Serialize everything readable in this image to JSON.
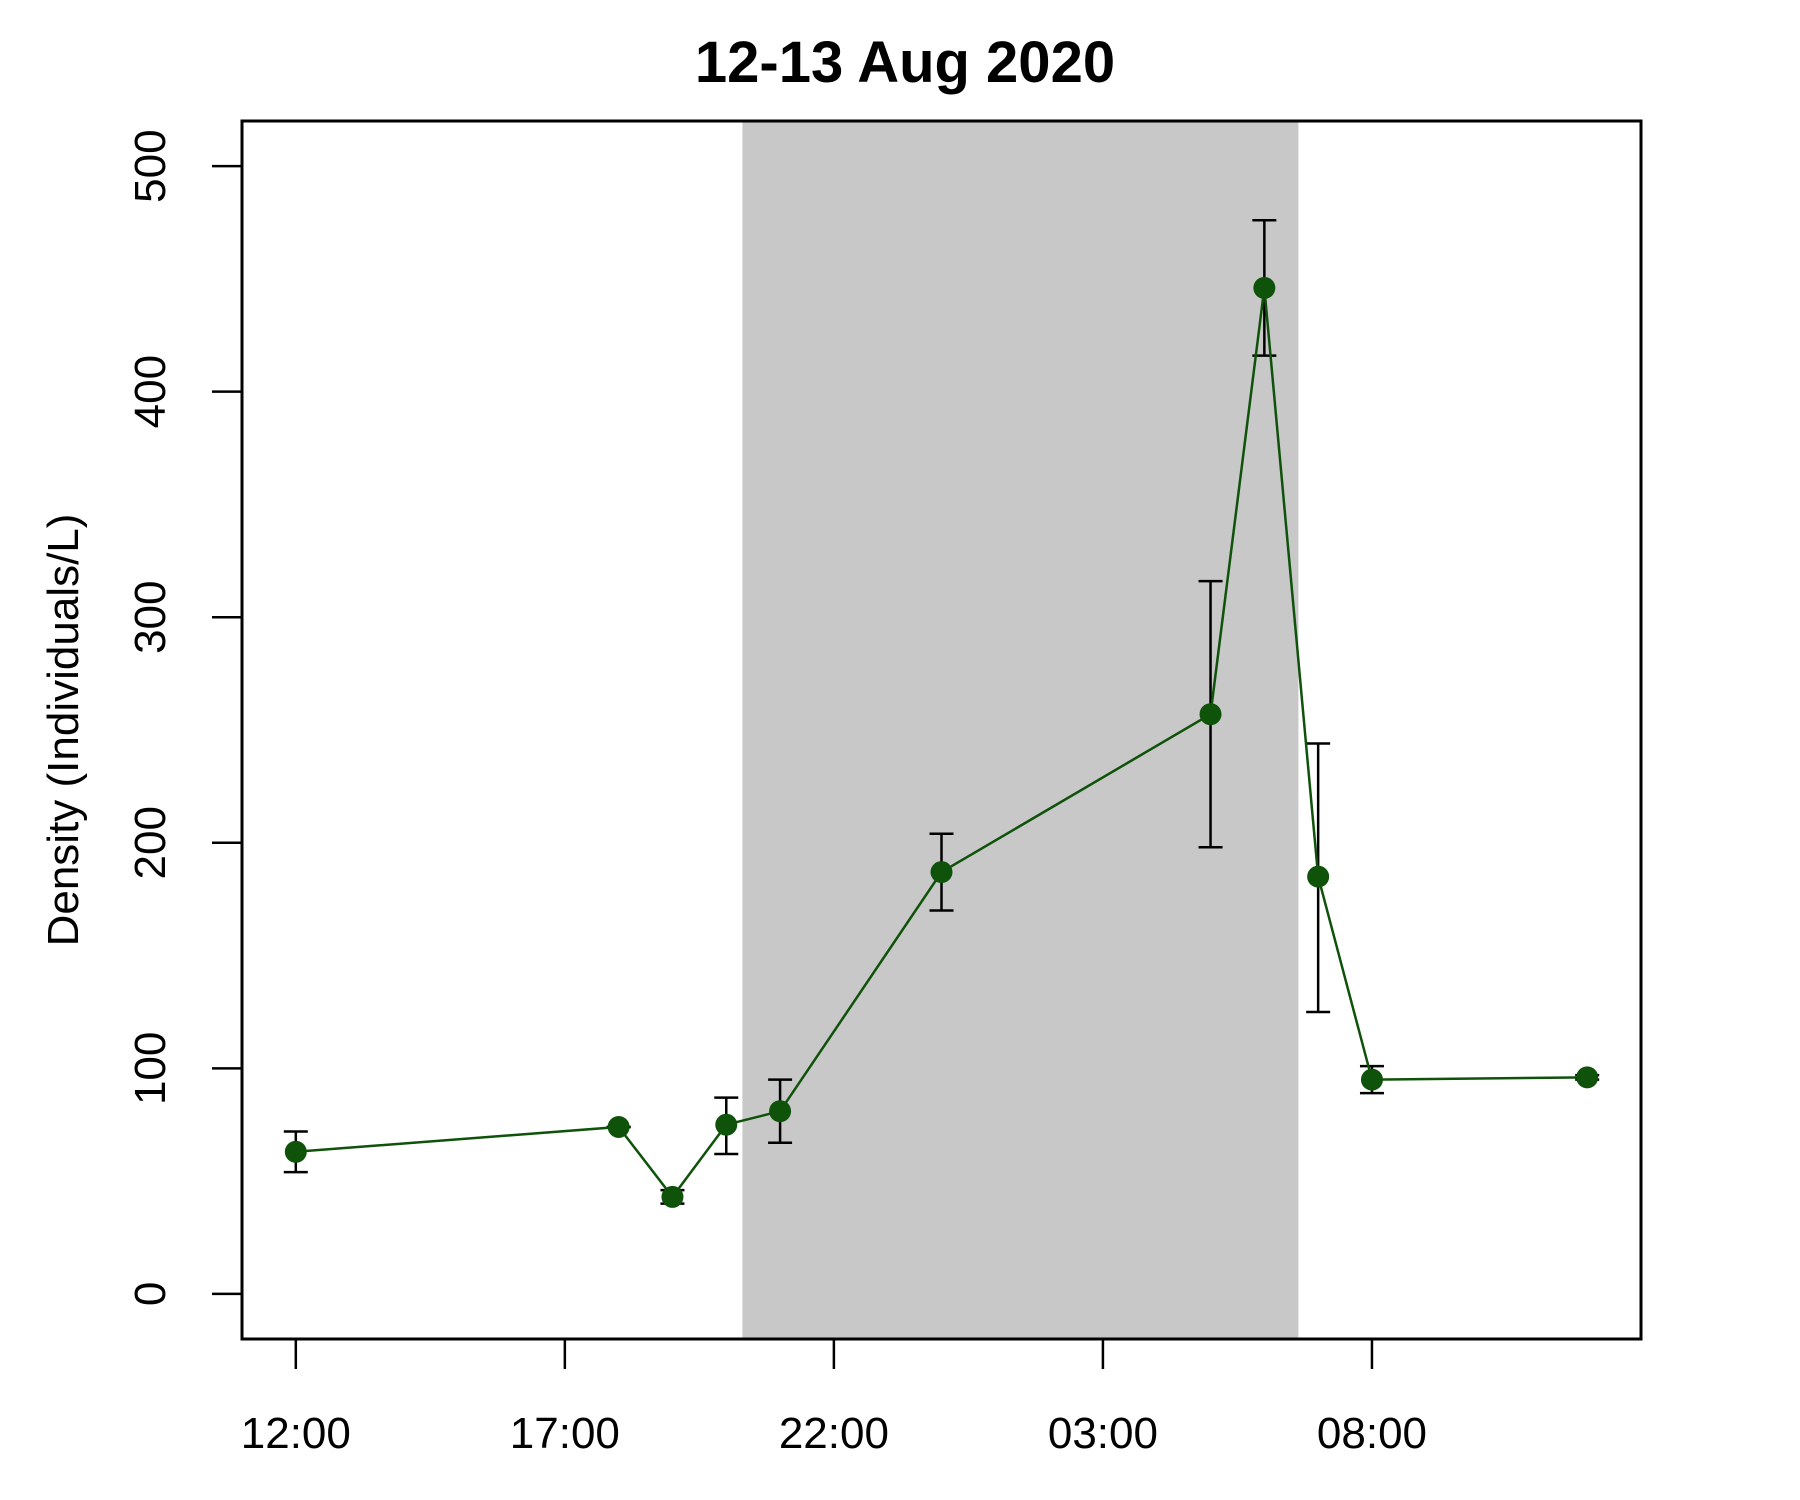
{
  "chart_data": {
    "type": "line",
    "title": "12-13 Aug 2020",
    "xlabel": "",
    "ylabel": "Density (Individuals/L)",
    "x_ticks": [
      "12:00",
      "17:00",
      "22:00",
      "03:00",
      "08:00"
    ],
    "y_ticks": [
      "0",
      "100",
      "200",
      "300",
      "400",
      "500"
    ],
    "ylim": [
      -20,
      520
    ],
    "xlim": [
      "2020-08-12 11:00",
      "2020-08-13 13:00"
    ],
    "night_shading": {
      "start": "2020-08-12 20:18",
      "end": "2020-08-13 06:38",
      "color": "#c8c8c8"
    },
    "line_color": "#0f520a",
    "point_color": "#0f520a",
    "errorbar_color": "#000000",
    "grid": false,
    "series": [
      {
        "points": [
          {
            "x": "2020-08-12 12:00",
            "y": 63,
            "err_low": 54,
            "err_high": 72
          },
          {
            "x": "2020-08-12 18:00",
            "y": 74,
            "err_low": 74,
            "err_high": 74
          },
          {
            "x": "2020-08-12 19:00",
            "y": 43,
            "err_low": 40,
            "err_high": 46
          },
          {
            "x": "2020-08-12 20:00",
            "y": 75,
            "err_low": 62,
            "err_high": 87
          },
          {
            "x": "2020-08-12 21:00",
            "y": 81,
            "err_low": 67,
            "err_high": 95
          },
          {
            "x": "2020-08-13 00:00",
            "y": 187,
            "err_low": 170,
            "err_high": 204
          },
          {
            "x": "2020-08-13 05:00",
            "y": 257,
            "err_low": 198,
            "err_high": 316
          },
          {
            "x": "2020-08-13 06:00",
            "y": 446,
            "err_low": 416,
            "err_high": 476
          },
          {
            "x": "2020-08-13 07:00",
            "y": 185,
            "err_low": 125,
            "err_high": 244
          },
          {
            "x": "2020-08-13 08:00",
            "y": 95,
            "err_low": 89,
            "err_high": 101
          },
          {
            "x": "2020-08-13 12:00",
            "y": 96,
            "err_low": 95,
            "err_high": 97
          }
        ]
      }
    ]
  }
}
